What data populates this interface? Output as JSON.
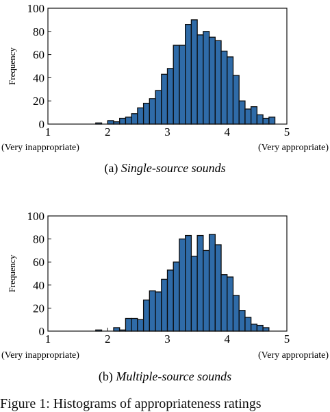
{
  "chart_data": [
    {
      "type": "bar",
      "panel_label": "(a)",
      "caption": "Single-source sounds",
      "ylabel": "Frequency",
      "ylim": [
        0,
        100
      ],
      "yticks": [
        "0",
        "20",
        "40",
        "60",
        "80",
        "100"
      ],
      "xlim": [
        1,
        5
      ],
      "xticks": [
        "1",
        "2",
        "3",
        "4",
        "5"
      ],
      "x_left_label": "(Very inappropriate)",
      "x_right_label": "(Very appropriate)",
      "bin_start": 1.8,
      "bin_width": 0.1,
      "values": [
        1,
        0,
        3,
        2,
        5,
        6,
        9,
        14,
        18,
        22,
        29,
        43,
        48,
        68,
        68,
        86,
        90,
        77,
        80,
        75,
        72,
        63,
        58,
        42,
        20,
        13,
        15,
        8,
        5,
        6
      ]
    },
    {
      "type": "bar",
      "panel_label": "(b)",
      "caption": "Multiple-source sounds",
      "ylabel": "Frequency",
      "ylim": [
        0,
        100
      ],
      "yticks": [
        "0",
        "20",
        "40",
        "60",
        "80",
        "100"
      ],
      "xlim": [
        1,
        5
      ],
      "xticks": [
        "1",
        "2",
        "3",
        "4",
        "5"
      ],
      "x_left_label": "(Very inappropriate)",
      "x_right_label": "(Very appropriate)",
      "bin_start": 1.8,
      "bin_width": 0.1,
      "values": [
        1,
        0,
        0,
        3,
        1,
        11,
        11,
        10,
        27,
        35,
        34,
        45,
        53,
        60,
        80,
        83,
        65,
        83,
        70,
        84,
        75,
        49,
        47,
        31,
        18,
        12,
        6,
        5,
        3
      ]
    }
  ],
  "figure_caption": "Figure 1: Histograms of appropriateness ratings"
}
